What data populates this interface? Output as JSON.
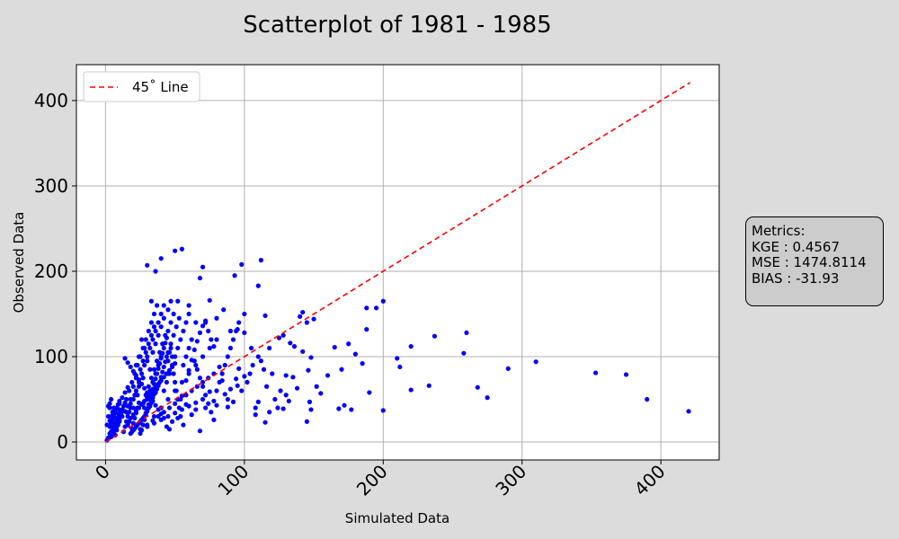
{
  "chart_data": {
    "type": "scatter",
    "title": "Scatterplot of 1981 - 1985",
    "xlabel": "Simulated Data",
    "ylabel": "Observed Data",
    "xlim": [
      -21,
      442
    ],
    "ylim": [
      -21,
      442
    ],
    "xticks": [
      0,
      100,
      200,
      300,
      400
    ],
    "yticks": [
      0,
      100,
      200,
      300,
      400
    ],
    "grid": true,
    "legend": {
      "placement": "top-left",
      "entries": [
        "45˚ Line"
      ]
    },
    "reference_line": {
      "name": "45˚ Line",
      "from": [
        0,
        0
      ],
      "to": [
        421,
        421
      ],
      "color": "#ff0000",
      "style": "dashed"
    },
    "point_color": "#0000ff",
    "points": [
      [
        2,
        5
      ],
      [
        3,
        10
      ],
      [
        4,
        8
      ],
      [
        5,
        15
      ],
      [
        6,
        20
      ],
      [
        3,
        25
      ],
      [
        4,
        30
      ],
      [
        5,
        35
      ],
      [
        6,
        40
      ],
      [
        3,
        45
      ],
      [
        4,
        50
      ],
      [
        5,
        12
      ],
      [
        6,
        18
      ],
      [
        7,
        22
      ],
      [
        8,
        28
      ],
      [
        9,
        33
      ],
      [
        10,
        38
      ],
      [
        2,
        42
      ],
      [
        3,
        18
      ],
      [
        7,
        8
      ],
      [
        8,
        14
      ],
      [
        9,
        20
      ],
      [
        10,
        26
      ],
      [
        11,
        31
      ],
      [
        12,
        36
      ],
      [
        13,
        12
      ],
      [
        14,
        18
      ],
      [
        15,
        24
      ],
      [
        16,
        30
      ],
      [
        17,
        35
      ],
      [
        18,
        40
      ],
      [
        19,
        16
      ],
      [
        20,
        22
      ],
      [
        21,
        28
      ],
      [
        22,
        34
      ],
      [
        23,
        40
      ],
      [
        24,
        46
      ],
      [
        25,
        10
      ],
      [
        26,
        14
      ],
      [
        27,
        20
      ],
      [
        28,
        26
      ],
      [
        29,
        32
      ],
      [
        30,
        38
      ],
      [
        31,
        44
      ],
      [
        32,
        50
      ],
      [
        33,
        56
      ],
      [
        34,
        62
      ],
      [
        35,
        68
      ],
      [
        36,
        74
      ],
      [
        37,
        80
      ],
      [
        38,
        86
      ],
      [
        39,
        92
      ],
      [
        40,
        98
      ],
      [
        41,
        104
      ],
      [
        42,
        110
      ],
      [
        43,
        116
      ],
      [
        44,
        122
      ],
      [
        20,
        50
      ],
      [
        22,
        60
      ],
      [
        24,
        70
      ],
      [
        26,
        80
      ],
      [
        28,
        90
      ],
      [
        30,
        100
      ],
      [
        32,
        110
      ],
      [
        34,
        120
      ],
      [
        36,
        130
      ],
      [
        38,
        140
      ],
      [
        40,
        150
      ],
      [
        42,
        160
      ],
      [
        20,
        65
      ],
      [
        22,
        75
      ],
      [
        25,
        85
      ],
      [
        27,
        95
      ],
      [
        29,
        105
      ],
      [
        31,
        115
      ],
      [
        33,
        125
      ],
      [
        35,
        135
      ],
      [
        23,
        55
      ],
      [
        27,
        45
      ],
      [
        29,
        55
      ],
      [
        31,
        65
      ],
      [
        33,
        75
      ],
      [
        35,
        85
      ],
      [
        37,
        95
      ],
      [
        39,
        105
      ],
      [
        41,
        115
      ],
      [
        43,
        125
      ],
      [
        45,
        130
      ],
      [
        47,
        140
      ],
      [
        49,
        150
      ],
      [
        28,
        40
      ],
      [
        30,
        50
      ],
      [
        32,
        60
      ],
      [
        34,
        70
      ],
      [
        36,
        80
      ],
      [
        38,
        90
      ],
      [
        40,
        100
      ],
      [
        42,
        60
      ],
      [
        44,
        70
      ],
      [
        46,
        80
      ],
      [
        48,
        90
      ],
      [
        50,
        100
      ],
      [
        52,
        110
      ],
      [
        54,
        120
      ],
      [
        56,
        130
      ],
      [
        58,
        140
      ],
      [
        60,
        150
      ],
      [
        30,
        20
      ],
      [
        34,
        25
      ],
      [
        38,
        30
      ],
      [
        42,
        35
      ],
      [
        46,
        40
      ],
      [
        50,
        45
      ],
      [
        54,
        50
      ],
      [
        58,
        55
      ],
      [
        62,
        60
      ],
      [
        66,
        65
      ],
      [
        70,
        70
      ],
      [
        74,
        75
      ],
      [
        78,
        80
      ],
      [
        25,
        15
      ],
      [
        30,
        18
      ],
      [
        35,
        22
      ],
      [
        40,
        26
      ],
      [
        45,
        30
      ],
      [
        50,
        34
      ],
      [
        55,
        38
      ],
      [
        60,
        42
      ],
      [
        65,
        46
      ],
      [
        70,
        50
      ],
      [
        15,
        35
      ],
      [
        18,
        45
      ],
      [
        21,
        55
      ],
      [
        24,
        65
      ],
      [
        27,
        75
      ],
      [
        17,
        60
      ],
      [
        19,
        70
      ],
      [
        21,
        80
      ],
      [
        23,
        90
      ],
      [
        25,
        100
      ],
      [
        27,
        110
      ],
      [
        29,
        120
      ],
      [
        31,
        130
      ],
      [
        33,
        140
      ],
      [
        35,
        150
      ],
      [
        37,
        160
      ],
      [
        33,
        165
      ],
      [
        45,
        155
      ],
      [
        47,
        165
      ],
      [
        52,
        165
      ],
      [
        36,
        200
      ],
      [
        30,
        207
      ],
      [
        40,
        215
      ],
      [
        50,
        224
      ],
      [
        55,
        226
      ],
      [
        70,
        205
      ],
      [
        68,
        192
      ],
      [
        98,
        208
      ],
      [
        112,
        213
      ],
      [
        110,
        183
      ],
      [
        93,
        195
      ],
      [
        60,
        160
      ],
      [
        65,
        140
      ],
      [
        72,
        140
      ],
      [
        75,
        166
      ],
      [
        80,
        145
      ],
      [
        85,
        155
      ],
      [
        90,
        130
      ],
      [
        95,
        132
      ],
      [
        100,
        150
      ],
      [
        100,
        128
      ],
      [
        105,
        110
      ],
      [
        110,
        100
      ],
      [
        115,
        148
      ],
      [
        120,
        80
      ],
      [
        125,
        122
      ],
      [
        128,
        125
      ],
      [
        130,
        78
      ],
      [
        133,
        116
      ],
      [
        136,
        112
      ],
      [
        140,
        147
      ],
      [
        142,
        152
      ],
      [
        145,
        140
      ],
      [
        150,
        144
      ],
      [
        148,
        99
      ],
      [
        146,
        84
      ],
      [
        152,
        65
      ],
      [
        155,
        57
      ],
      [
        160,
        78
      ],
      [
        165,
        111
      ],
      [
        170,
        85
      ],
      [
        175,
        115
      ],
      [
        180,
        103
      ],
      [
        185,
        92
      ],
      [
        188,
        132
      ],
      [
        188,
        157
      ],
      [
        195,
        157
      ],
      [
        200,
        165
      ],
      [
        210,
        98
      ],
      [
        212,
        88
      ],
      [
        220,
        112
      ],
      [
        237,
        124
      ],
      [
        258,
        104
      ],
      [
        260,
        128
      ],
      [
        268,
        64
      ],
      [
        275,
        52
      ],
      [
        290,
        86
      ],
      [
        310,
        94
      ],
      [
        353,
        81
      ],
      [
        375,
        79
      ],
      [
        390,
        50
      ],
      [
        420,
        36
      ],
      [
        200,
        37
      ],
      [
        220,
        61
      ],
      [
        233,
        66
      ],
      [
        190,
        58
      ],
      [
        177,
        38
      ],
      [
        172,
        43
      ],
      [
        168,
        39
      ],
      [
        147,
        47
      ],
      [
        148,
        38
      ],
      [
        145,
        24
      ],
      [
        130,
        55
      ],
      [
        128,
        39
      ],
      [
        118,
        35
      ],
      [
        110,
        47
      ],
      [
        108,
        32
      ],
      [
        115,
        23
      ],
      [
        100,
        77
      ],
      [
        95,
        66
      ],
      [
        92,
        47
      ],
      [
        88,
        41
      ],
      [
        80,
        43
      ],
      [
        78,
        48
      ],
      [
        75,
        59
      ],
      [
        72,
        40
      ],
      [
        68,
        13
      ],
      [
        65,
        38
      ],
      [
        62,
        32
      ],
      [
        58,
        44
      ],
      [
        55,
        54
      ],
      [
        52,
        28
      ],
      [
        48,
        24
      ],
      [
        46,
        15
      ],
      [
        44,
        18
      ],
      [
        42,
        28
      ],
      [
        40,
        33
      ],
      [
        38,
        38
      ],
      [
        36,
        43
      ],
      [
        34,
        48
      ],
      [
        32,
        53
      ],
      [
        30,
        58
      ],
      [
        28,
        63
      ],
      [
        26,
        68
      ],
      [
        24,
        73
      ],
      [
        22,
        78
      ],
      [
        20,
        83
      ],
      [
        18,
        88
      ],
      [
        16,
        93
      ],
      [
        14,
        98
      ],
      [
        45,
        105
      ],
      [
        47,
        115
      ],
      [
        49,
        125
      ],
      [
        51,
        135
      ],
      [
        53,
        145
      ],
      [
        56,
        90
      ],
      [
        58,
        100
      ],
      [
        60,
        110
      ],
      [
        62,
        120
      ],
      [
        64,
        95
      ],
      [
        66,
        85
      ],
      [
        68,
        75
      ],
      [
        70,
        65
      ],
      [
        72,
        55
      ],
      [
        74,
        45
      ],
      [
        76,
        35
      ],
      [
        78,
        26
      ],
      [
        80,
        60
      ],
      [
        82,
        70
      ],
      [
        84,
        80
      ],
      [
        86,
        90
      ],
      [
        88,
        100
      ],
      [
        90,
        110
      ],
      [
        92,
        120
      ],
      [
        94,
        130
      ],
      [
        96,
        140
      ],
      [
        98,
        60
      ],
      [
        102,
        70
      ],
      [
        104,
        80
      ],
      [
        106,
        90
      ],
      [
        108,
        40
      ],
      [
        112,
        95
      ],
      [
        114,
        85
      ],
      [
        116,
        65
      ],
      [
        118,
        110
      ],
      [
        122,
        50
      ],
      [
        124,
        40
      ],
      [
        126,
        60
      ],
      [
        132,
        48
      ],
      [
        135,
        76
      ],
      [
        138,
        63
      ],
      [
        142,
        106
      ],
      [
        10,
        45
      ],
      [
        12,
        52
      ],
      [
        14,
        58
      ],
      [
        16,
        64
      ],
      [
        18,
        28
      ],
      [
        20,
        32
      ],
      [
        22,
        36
      ],
      [
        24,
        40
      ],
      [
        26,
        44
      ],
      [
        28,
        48
      ],
      [
        30,
        52
      ],
      [
        32,
        56
      ],
      [
        34,
        60
      ],
      [
        36,
        64
      ],
      [
        38,
        68
      ],
      [
        40,
        72
      ],
      [
        42,
        76
      ],
      [
        44,
        80
      ],
      [
        46,
        84
      ],
      [
        48,
        88
      ],
      [
        50,
        92
      ],
      [
        1,
        2
      ],
      [
        2,
        4
      ],
      [
        3,
        6
      ],
      [
        4,
        12
      ],
      [
        5,
        28
      ],
      [
        6,
        32
      ],
      [
        7,
        36
      ],
      [
        8,
        40
      ],
      [
        9,
        44
      ],
      [
        10,
        48
      ],
      [
        1,
        20
      ],
      [
        2,
        30
      ],
      [
        3,
        40
      ],
      [
        4,
        22
      ],
      [
        5,
        26
      ],
      [
        6,
        14
      ],
      [
        7,
        16
      ],
      [
        8,
        24
      ],
      [
        9,
        26
      ],
      [
        10,
        30
      ],
      [
        11,
        34
      ],
      [
        12,
        38
      ],
      [
        13,
        42
      ],
      [
        14,
        46
      ],
      [
        15,
        50
      ],
      [
        16,
        20
      ],
      [
        17,
        24
      ],
      [
        18,
        10
      ],
      [
        19,
        12
      ],
      [
        20,
        14
      ],
      [
        21,
        16
      ],
      [
        22,
        18
      ],
      [
        23,
        20
      ],
      [
        24,
        22
      ],
      [
        25,
        24
      ],
      [
        26,
        26
      ],
      [
        27,
        28
      ],
      [
        28,
        30
      ],
      [
        29,
        34
      ],
      [
        30,
        36
      ],
      [
        31,
        40
      ],
      [
        32,
        42
      ],
      [
        33,
        46
      ],
      [
        34,
        52
      ],
      [
        35,
        56
      ],
      [
        36,
        58
      ],
      [
        37,
        62
      ],
      [
        38,
        66
      ],
      [
        39,
        70
      ],
      [
        40,
        76
      ],
      [
        41,
        82
      ],
      [
        42,
        88
      ],
      [
        43,
        94
      ],
      [
        44,
        100
      ],
      [
        45,
        95
      ],
      [
        46,
        105
      ],
      [
        47,
        110
      ],
      [
        48,
        100
      ],
      [
        49,
        80
      ],
      [
        50,
        70
      ],
      [
        51,
        60
      ],
      [
        52,
        50
      ],
      [
        53,
        40
      ],
      [
        54,
        30
      ],
      [
        56,
        20
      ],
      [
        58,
        72
      ],
      [
        60,
        84
      ],
      [
        62,
        96
      ],
      [
        64,
        108
      ],
      [
        66,
        118
      ],
      [
        68,
        128
      ],
      [
        70,
        136
      ],
      [
        72,
        142
      ],
      [
        74,
        130
      ],
      [
        76,
        120
      ],
      [
        78,
        112
      ],
      [
        82,
        88
      ],
      [
        84,
        72
      ],
      [
        86,
        56
      ],
      [
        88,
        50
      ],
      [
        90,
        62
      ],
      [
        94,
        74
      ],
      [
        96,
        86
      ],
      [
        30,
        95
      ],
      [
        32,
        85
      ],
      [
        34,
        105
      ],
      [
        36,
        115
      ],
      [
        38,
        125
      ],
      [
        40,
        135
      ],
      [
        42,
        145
      ],
      [
        26,
        120
      ],
      [
        28,
        110
      ],
      [
        24,
        100
      ],
      [
        22,
        90
      ],
      [
        20,
        40
      ],
      [
        18,
        50
      ],
      [
        16,
        42
      ],
      [
        14,
        36
      ],
      [
        12,
        30
      ],
      [
        10,
        24
      ],
      [
        8,
        18
      ],
      [
        6,
        12
      ],
      [
        4,
        6
      ],
      [
        35,
        30
      ],
      [
        40,
        40
      ],
      [
        45,
        50
      ],
      [
        50,
        60
      ],
      [
        55,
        70
      ],
      [
        60,
        80
      ],
      [
        65,
        90
      ],
      [
        70,
        100
      ],
      [
        75,
        110
      ],
      [
        80,
        120
      ]
    ]
  },
  "metrics": {
    "header": "Metrics:",
    "kge": "KGE : 0.4567",
    "mse": "MSE : 1474.8114",
    "bias": "BIAS : -31.93"
  }
}
